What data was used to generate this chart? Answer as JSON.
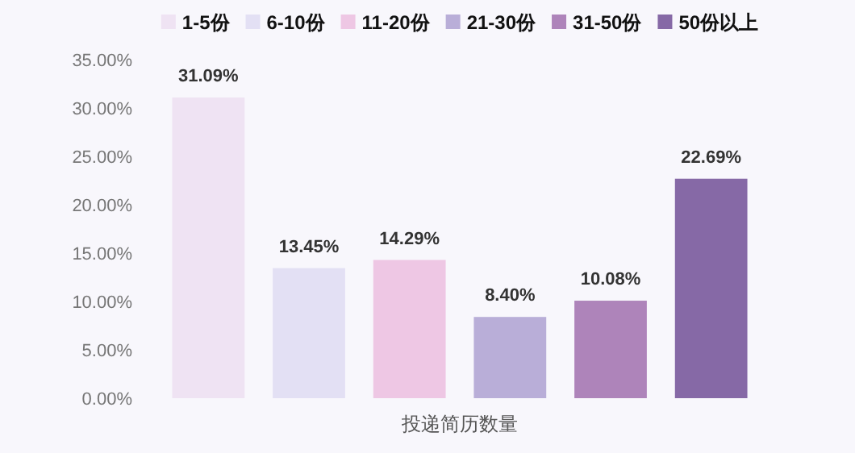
{
  "chart_data": {
    "type": "bar",
    "xlabel": "投递简历数量",
    "categories": [
      null
    ],
    "series": [
      {
        "name": "1-5份",
        "color": "#efe3f3",
        "values": [
          31.09
        ],
        "value_labels": [
          "31.09%"
        ]
      },
      {
        "name": "6-10份",
        "color": "#e3e0f4",
        "values": [
          13.45
        ],
        "value_labels": [
          "13.45%"
        ]
      },
      {
        "name": "11-20份",
        "color": "#eec7e4",
        "values": [
          14.29
        ],
        "value_labels": [
          "14.29%"
        ]
      },
      {
        "name": "21-30份",
        "color": "#b9aed8",
        "values": [
          8.4
        ],
        "value_labels": [
          "8.40%"
        ]
      },
      {
        "name": "31-50份",
        "color": "#ae84ba",
        "values": [
          10.08
        ],
        "value_labels": [
          "10.08%"
        ]
      },
      {
        "name": "50份以上",
        "color": "#8669a6",
        "values": [
          22.69
        ],
        "value_labels": [
          "22.69%"
        ]
      }
    ],
    "ylim": [
      0,
      35
    ],
    "yticks": [
      {
        "value": 0,
        "label": "0.00%"
      },
      {
        "value": 5,
        "label": "5.00%"
      },
      {
        "value": 10,
        "label": "10.00%"
      },
      {
        "value": 15,
        "label": "15.00%"
      },
      {
        "value": 20,
        "label": "20.00%"
      },
      {
        "value": 25,
        "label": "25.00%"
      },
      {
        "value": 30,
        "label": "30.00%"
      },
      {
        "value": 35,
        "label": "35.00%"
      }
    ],
    "legend": "top",
    "grid": false
  }
}
